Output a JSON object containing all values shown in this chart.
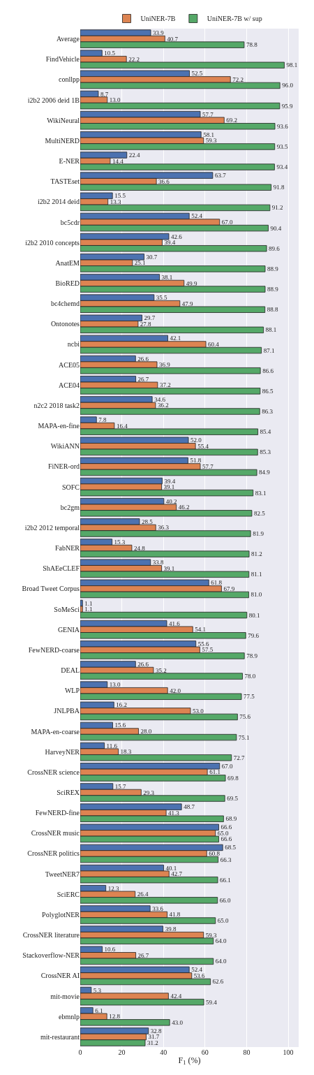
{
  "chart_data": {
    "type": "bar",
    "orientation": "horizontal",
    "xlabel": "F$_{1}$ (%)",
    "categories": [
      "Average",
      "FindVehicle",
      "conllpp",
      "i2b2 2006 deid 1B",
      "WikiNeural",
      "MultiNERD",
      "E-NER",
      "TASTEset",
      "i2b2 2014 deid",
      "bc5cdr",
      "i2b2 2010 concepts",
      "AnatEM",
      "BioRED",
      "bc4chemd",
      "Ontonotes",
      "ncbi",
      "ACE05",
      "ACE04",
      "n2c2 2018 task2",
      "MAPA-en-fine",
      "WikiANN",
      "FiNER-ord",
      "SOFC",
      "bc2gm",
      "i2b2 2012 temporal",
      "FabNER",
      "ShAEeCLEF",
      "Broad Tweet Corpus",
      "SoMeSci",
      "GENIA",
      "FewNERD-coarse",
      "DEAL",
      "WLP",
      "JNLPBA",
      "MAPA-en-coarse",
      "HarveyNER",
      "CrossNER science",
      "SciREX",
      "FewNERD-fine",
      "CrossNER music",
      "CrossNER politics",
      "TweetNER7",
      "SciERC",
      "PolyglotNER",
      "CrossNER literature",
      "Stackoverflow-NER",
      "CrossNER AI",
      "mit-movie",
      "ebmnlp",
      "mit-restaurant"
    ],
    "series": [
      {
        "color": "#4c72b0",
        "values": [
          33.9,
          10.5,
          52.5,
          8.7,
          57.7,
          58.1,
          22.4,
          63.7,
          15.5,
          52.4,
          42.6,
          30.7,
          38.1,
          35.5,
          29.7,
          42.1,
          26.6,
          26.7,
          34.6,
          7.8,
          52.0,
          51.8,
          39.4,
          40.2,
          28.5,
          15.3,
          33.8,
          61.8,
          1.1,
          41.6,
          55.6,
          26.6,
          13.0,
          16.2,
          15.6,
          11.6,
          67.0,
          15.7,
          48.7,
          66.6,
          68.5,
          40.1,
          12.3,
          33.6,
          39.8,
          10.6,
          52.4,
          5.3,
          6.1,
          32.8
        ],
        "value_labels": [
          "33.9",
          "10.5",
          "52.5",
          "8.7",
          "57.7",
          "58.1",
          "22.4",
          "63.7",
          "15.5",
          "52.4",
          "42.6",
          "30.7",
          "38.1",
          "35.5",
          "29.7",
          "42.1",
          "26.6",
          "26.7",
          "34.6",
          "7.8",
          "52.0",
          "51.8",
          "39.4",
          "40.2",
          "28.5",
          "15.3",
          "33.8",
          "61.8",
          "1.1",
          "41.6",
          "55.6",
          "26.6",
          "13.0",
          "16.2",
          "15.6",
          "11.6",
          "67.0",
          "15.7",
          "48.7",
          "66.6",
          "68.5",
          "40.1",
          "12.3",
          "33.6",
          "39.8",
          "10.6",
          "52.4",
          "5.3",
          "6.1",
          "32.8"
        ]
      },
      {
        "name": "UniNER-7B",
        "color": "#dd8452",
        "values": [
          40.7,
          22.2,
          72.2,
          13.0,
          69.2,
          59.3,
          14.4,
          36.6,
          13.3,
          67.0,
          39.4,
          25.1,
          49.9,
          47.9,
          27.8,
          60.4,
          36.9,
          37.2,
          36.2,
          16.4,
          55.4,
          57.7,
          39.1,
          46.2,
          36.3,
          24.8,
          39.1,
          67.9,
          1.1,
          54.1,
          57.5,
          35.2,
          42.0,
          53.0,
          28.0,
          18.3,
          61.1,
          29.3,
          41.3,
          65.0,
          60.8,
          42.7,
          26.4,
          41.8,
          59.3,
          26.7,
          53.6,
          42.4,
          12.8,
          31.7
        ],
        "value_labels": [
          "40.7",
          "22.2",
          "72.2",
          "13.0",
          "69.2",
          "59.3",
          "14.4",
          "36.6",
          "13.3",
          "67.0",
          "39.4",
          "25.1",
          "49.9",
          "47.9",
          "27.8",
          "60.4",
          "36.9",
          "37.2",
          "36.2",
          "16.4",
          "55.4",
          "57.7",
          "39.1",
          "46.2",
          "36.3",
          "24.8",
          "39.1",
          "67.9",
          "1.1",
          "54.1",
          "57.5",
          "35.2",
          "42.0",
          "53.0",
          "28.0",
          "18.3",
          "61.1",
          "29.3",
          "41.3",
          "65.0",
          "60.8",
          "42.7",
          "26.4",
          "41.8",
          "59.3",
          "26.7",
          "53.6",
          "42.4",
          "12.8",
          "31.7"
        ]
      },
      {
        "name": "UniNER-7B w/ sup",
        "color": "#55a868",
        "values": [
          78.8,
          98.1,
          96.0,
          95.9,
          93.6,
          93.5,
          93.4,
          91.8,
          91.2,
          90.4,
          89.6,
          88.9,
          88.9,
          88.8,
          88.1,
          87.1,
          86.6,
          86.5,
          86.3,
          85.4,
          85.3,
          84.9,
          83.1,
          82.5,
          81.9,
          81.2,
          81.1,
          81.0,
          80.1,
          79.6,
          78.9,
          78.0,
          77.5,
          75.6,
          75.1,
          72.7,
          69.8,
          69.5,
          68.9,
          66.6,
          66.3,
          66.1,
          66.0,
          65.0,
          64.0,
          64.0,
          62.6,
          59.4,
          43.0,
          31.2
        ],
        "value_labels": [
          "78.8",
          "98.1",
          "96.0",
          "95.9",
          "93.6",
          "93.5",
          "93.4",
          "91.8",
          "91.2",
          "90.4",
          "89.6",
          "88.9",
          "88.9",
          "88.8",
          "88.1",
          "87.1",
          "86.6",
          "86.5",
          "86.3",
          "85.4",
          "85.3",
          "84.9",
          "83.1",
          "82.5",
          "81.9",
          "81.2",
          "81.1",
          "81.0",
          "80.1",
          "79.6",
          "78.9",
          "78.0",
          "77.5",
          "75.6",
          "75.1",
          "72.7",
          "69.8",
          "69.5",
          "68.9",
          "66.6",
          "66.3",
          "66.1",
          "66.0",
          "65.0",
          "64.0",
          "64.0",
          "62.6",
          "59.4",
          "43.0",
          "31.2"
        ]
      }
    ],
    "xlim": [
      0,
      105
    ],
    "xticks": [
      0,
      20,
      40,
      60,
      80,
      100
    ],
    "grid": "x",
    "legend": "top"
  }
}
